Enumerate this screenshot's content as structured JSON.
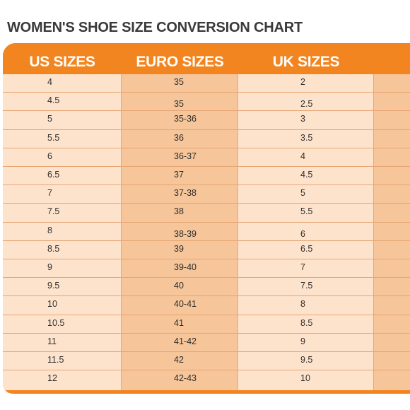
{
  "title": "WOMEN'S SHOE SIZE CONVERSION CHART",
  "colors": {
    "accent": "#f2851f",
    "cell_light": "#fde3cc",
    "cell_dark": "#f6c59a",
    "title_text": "#3a3a3a"
  },
  "table": {
    "headers": [
      "US SIZES",
      "EURO SIZES",
      "UK SIZES"
    ],
    "rows": [
      [
        "4",
        "35",
        "2"
      ],
      [
        "4.5",
        "35",
        "2.5"
      ],
      [
        "5",
        "35-36",
        "3"
      ],
      [
        "5.5",
        "36",
        "3.5"
      ],
      [
        "6",
        "36-37",
        "4"
      ],
      [
        "6.5",
        "37",
        "4.5"
      ],
      [
        "7",
        "37-38",
        "5"
      ],
      [
        "7.5",
        "38",
        "5.5"
      ],
      [
        "8",
        "38-39",
        "6"
      ],
      [
        "8.5",
        "39",
        "6.5"
      ],
      [
        "9",
        "39-40",
        "7"
      ],
      [
        "9.5",
        "40",
        "7.5"
      ],
      [
        "10",
        "40-41",
        "8"
      ],
      [
        "10.5",
        "41",
        "8.5"
      ],
      [
        "11",
        "41-42",
        "9"
      ],
      [
        "11.5",
        "42",
        "9.5"
      ],
      [
        "12",
        "42-43",
        "10"
      ]
    ]
  }
}
